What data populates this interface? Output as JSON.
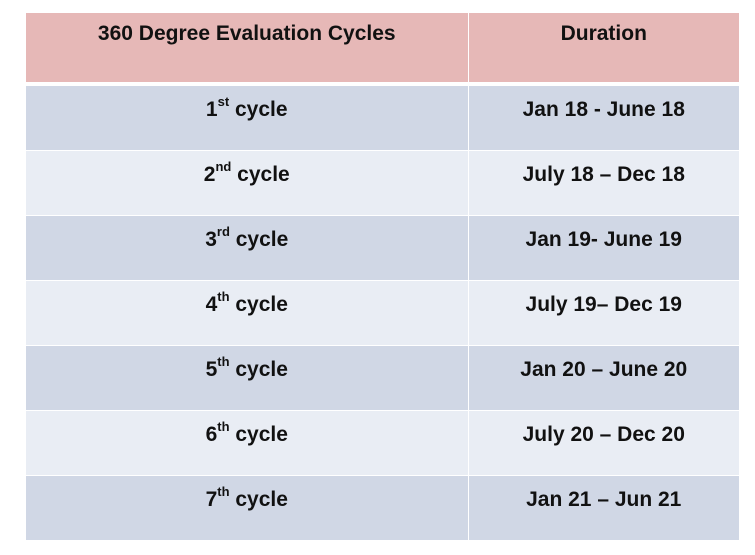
{
  "table": {
    "headers": [
      "360 Degree Evaluation Cycles",
      "Duration"
    ],
    "rows": [
      {
        "num": "1",
        "suffix": "st",
        "word": " cycle",
        "duration": "Jan 18 - June 18"
      },
      {
        "num": "2",
        "suffix": "nd",
        "word": " cycle",
        "duration": "July 18 – Dec 18"
      },
      {
        "num": "3",
        "suffix": "rd",
        "word": " cycle",
        "duration": "Jan 19- June 19"
      },
      {
        "num": "4",
        "suffix": "th",
        "word": " cycle",
        "duration": "July 19– Dec 19"
      },
      {
        "num": "5",
        "suffix": "th",
        "word": " cycle",
        "duration": "Jan 20 – June 20"
      },
      {
        "num": "6",
        "suffix": "th",
        "word": " cycle",
        "duration": "July 20 – Dec 20"
      },
      {
        "num": "7",
        "suffix": "th",
        "word": " cycle",
        "duration": "Jan 21 – Jun 21"
      }
    ]
  },
  "colors": {
    "header_bg": "#e6b8b7",
    "row_dark": "#d0d7e5",
    "row_light": "#e9edf4"
  }
}
